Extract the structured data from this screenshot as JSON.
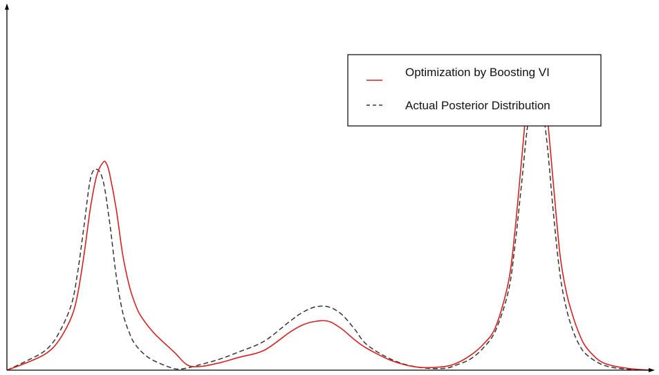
{
  "chart_data": {
    "type": "line",
    "title": "",
    "xlabel": "",
    "ylabel": "",
    "xlim": [
      0,
      100
    ],
    "ylim": [
      0,
      100
    ],
    "grid": false,
    "legend_position": "top-right",
    "colors": {
      "boosting": "#d62020",
      "actual": "#333333"
    },
    "series": [
      {
        "name": "Optimization by Boosting VI",
        "style": "solid",
        "x": [
          0,
          3,
          6,
          8,
          10,
          11,
          12,
          13,
          14,
          15,
          15.5,
          16,
          17,
          18,
          19,
          20,
          21,
          23,
          26,
          28,
          30,
          33,
          36,
          40,
          44,
          46,
          48,
          50,
          52,
          54,
          56,
          60,
          64,
          68,
          70,
          72,
          74,
          76,
          78,
          79,
          80,
          81,
          82,
          83,
          84,
          85,
          86,
          87,
          88,
          89,
          90,
          92,
          94,
          97,
          100
        ],
        "y": [
          0,
          2.0,
          4.5,
          8.0,
          14.5,
          21.0,
          32.0,
          45.0,
          54.0,
          57.5,
          57.0,
          54.0,
          44.5,
          32.0,
          23.5,
          18.0,
          14.5,
          10.0,
          5.0,
          1.5,
          1.0,
          2.0,
          3.5,
          5.5,
          10.5,
          12.5,
          13.5,
          13.5,
          11.5,
          8.5,
          6.0,
          2.5,
          0.8,
          1.0,
          2.0,
          4.0,
          7.0,
          12.0,
          24.5,
          38.5,
          57.5,
          76.0,
          84.5,
          83.5,
          70.5,
          51.0,
          32.0,
          21.5,
          15.0,
          10.0,
          6.5,
          2.8,
          1.3,
          0.4,
          0
        ]
      },
      {
        "name": "Actual Posterior Distribution",
        "style": "dashed",
        "x": [
          0,
          3,
          6,
          8,
          10,
          11,
          12,
          13,
          14,
          15,
          16,
          17,
          18,
          19,
          20,
          22,
          25,
          27,
          30,
          33,
          36,
          40,
          44,
          46,
          48,
          50,
          52,
          54,
          56,
          60,
          64,
          68,
          70,
          72,
          74,
          76,
          78,
          79,
          80,
          81,
          82,
          83,
          84,
          85,
          86,
          87,
          88,
          89,
          90,
          92,
          94,
          97,
          100
        ],
        "y": [
          0,
          2.5,
          5.5,
          10.0,
          18.0,
          27.0,
          40.0,
          53.0,
          55.5,
          52.0,
          40.5,
          26.0,
          16.0,
          10.5,
          7.0,
          3.5,
          1.0,
          0.3,
          1.5,
          3.0,
          5.0,
          8.0,
          13.5,
          16.0,
          17.5,
          17.5,
          15.5,
          11.5,
          7.0,
          2.8,
          0.8,
          0.5,
          1.5,
          3.0,
          6.0,
          11.0,
          22.0,
          34.5,
          51.0,
          68.0,
          76.5,
          75.5,
          62.5,
          43.0,
          26.5,
          17.0,
          11.0,
          7.0,
          4.5,
          2.0,
          0.8,
          0.2,
          0
        ]
      }
    ]
  }
}
